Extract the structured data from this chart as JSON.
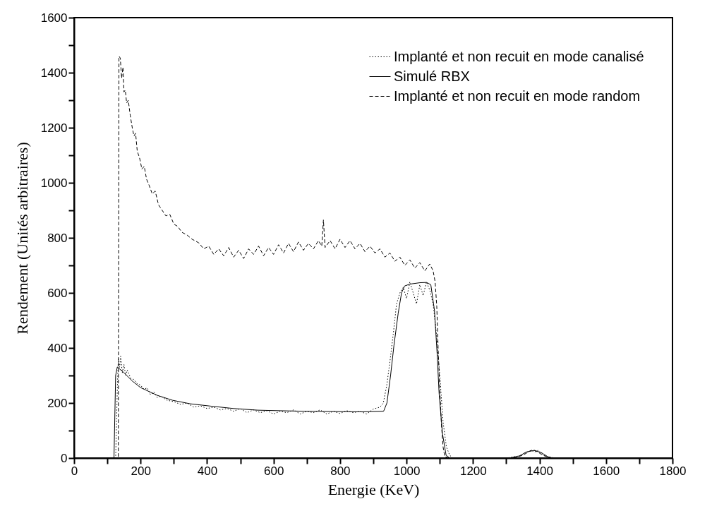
{
  "chart_data": {
    "type": "line",
    "xlabel": "Energie (KeV)",
    "ylabel": "Rendement (Unités arbitraires)",
    "legend": "top right",
    "grid": false,
    "xlim": [
      0,
      1800
    ],
    "xticks": [
      0,
      {
        "value": 100,
        "label": null
      },
      200,
      {
        "value": 300,
        "label": null
      },
      400,
      {
        "value": 500,
        "label": null
      },
      600,
      {
        "value": 700,
        "label": null
      },
      800,
      {
        "value": 900,
        "label": null
      },
      1000,
      {
        "value": 1100,
        "label": null
      },
      1200,
      {
        "value": 1300,
        "label": null
      },
      1400,
      {
        "value": 1500,
        "label": null
      },
      1600,
      {
        "value": 1700,
        "label": null
      },
      1800
    ],
    "ylim": [
      0,
      1600
    ],
    "yticks": [
      0,
      {
        "value": 100,
        "label": null
      },
      200,
      {
        "value": 300,
        "label": null
      },
      400,
      {
        "value": 500,
        "label": null
      },
      600,
      {
        "value": 700,
        "label": null
      },
      800,
      {
        "value": 900,
        "label": null
      },
      1000,
      {
        "value": 1100,
        "label": null
      },
      1200,
      {
        "value": 1300,
        "label": null
      },
      1400,
      {
        "value": 1500,
        "label": null
      },
      1600
    ],
    "series": [
      {
        "name": "Implanté et non recuit en mode canalisé",
        "color": "#000000",
        "line_style": "dotted",
        "x": [
          115,
          125,
          130,
          133,
          137,
          140,
          145,
          150,
          155,
          160,
          170,
          180,
          190,
          200,
          210,
          220,
          230,
          240,
          250,
          260,
          280,
          300,
          320,
          340,
          360,
          380,
          400,
          420,
          440,
          460,
          480,
          500,
          520,
          540,
          560,
          580,
          600,
          620,
          640,
          660,
          680,
          700,
          720,
          740,
          760,
          780,
          800,
          820,
          840,
          860,
          880,
          900,
          920,
          930,
          940,
          950,
          960,
          970,
          980,
          990,
          1000,
          1010,
          1020,
          1030,
          1040,
          1050,
          1060,
          1070,
          1080,
          1090,
          1100,
          1110,
          1120,
          1130,
          1140,
          1300,
          1340,
          1360,
          1375,
          1385,
          1395,
          1410,
          1430,
          1450
        ],
        "values": [
          0,
          0,
          250,
          360,
          330,
          370,
          310,
          340,
          300,
          320,
          290,
          285,
          270,
          265,
          250,
          255,
          230,
          240,
          220,
          225,
          210,
          205,
          195,
          200,
          185,
          190,
          180,
          185,
          175,
          180,
          170,
          180,
          165,
          175,
          165,
          172,
          160,
          170,
          165,
          175,
          160,
          170,
          165,
          175,
          160,
          170,
          162,
          172,
          165,
          170,
          160,
          178,
          185,
          200,
          260,
          350,
          450,
          560,
          600,
          620,
          580,
          640,
          600,
          560,
          630,
          590,
          640,
          610,
          560,
          450,
          300,
          130,
          40,
          10,
          0,
          0,
          8,
          20,
          28,
          22,
          28,
          12,
          3,
          0
        ]
      },
      {
        "name": "Simulé RBX",
        "color": "#000000",
        "line_style": "solid",
        "x": [
          115,
          120,
          125,
          130,
          150,
          175,
          200,
          250,
          296,
          350,
          409,
          480,
          552,
          620,
          694,
          780,
          864,
          931,
          941,
          952,
          962,
          975,
          985,
          994,
          1010,
          1040,
          1060,
          1073,
          1084,
          1092,
          1098,
          1108,
          1119,
          1130,
          1310,
          1340,
          1360,
          1385,
          1405,
          1425,
          1440
        ],
        "values": [
          0,
          0,
          300,
          331,
          310,
          280,
          256,
          228,
          210,
          197,
          189,
          180,
          174,
          172,
          170,
          169,
          168,
          170,
          200,
          300,
          408,
          527,
          600,
          625,
          632,
          637,
          638,
          630,
          537,
          380,
          235,
          90,
          10,
          0,
          0,
          8,
          22,
          28,
          20,
          5,
          0
        ]
      },
      {
        "name": "Implanté et non recuit en mode random",
        "color": "#000000",
        "line_style": "dashed",
        "x": [
          120,
          133,
          135,
          139,
          143,
          147,
          150,
          154,
          158,
          163,
          169,
          175,
          180,
          185,
          190,
          197,
          204,
          211,
          218,
          226,
          235,
          244,
          254,
          265,
          276,
          288,
          300,
          311,
          325,
          340,
          355,
          375,
          390,
          405,
          420,
          435,
          450,
          465,
          480,
          495,
          510,
          525,
          540,
          555,
          570,
          585,
          600,
          615,
          630,
          645,
          660,
          675,
          690,
          705,
          720,
          735,
          745,
          750,
          755,
          770,
          785,
          800,
          815,
          830,
          845,
          860,
          875,
          890,
          905,
          920,
          935,
          950,
          965,
          980,
          995,
          1010,
          1025,
          1040,
          1055,
          1070,
          1080,
          1086,
          1091,
          1095,
          1100,
          1105,
          1110,
          1115,
          1130,
          1320,
          1350,
          1370,
          1380,
          1395,
          1410,
          1430,
          1450
        ],
        "values": [
          0,
          0,
          1460,
          1453,
          1380,
          1420,
          1330,
          1337,
          1290,
          1300,
          1244,
          1200,
          1170,
          1180,
          1115,
          1090,
          1050,
          1060,
          1013,
          990,
          960,
          970,
          920,
          900,
          880,
          885,
          850,
          842,
          820,
          810,
          795,
          782,
          760,
          770,
          740,
          760,
          735,
          765,
          730,
          755,
          725,
          760,
          740,
          770,
          735,
          765,
          740,
          775,
          745,
          780,
          750,
          785,
          755,
          780,
          760,
          790,
          770,
          865,
          765,
          790,
          760,
          795,
          765,
          790,
          760,
          780,
          750,
          770,
          745,
          760,
          730,
          745,
          715,
          730,
          700,
          720,
          690,
          710,
          680,
          705,
          680,
          640,
          550,
          400,
          250,
          120,
          40,
          5,
          0,
          0,
          10,
          25,
          30,
          22,
          10,
          2,
          0
        ]
      }
    ]
  }
}
